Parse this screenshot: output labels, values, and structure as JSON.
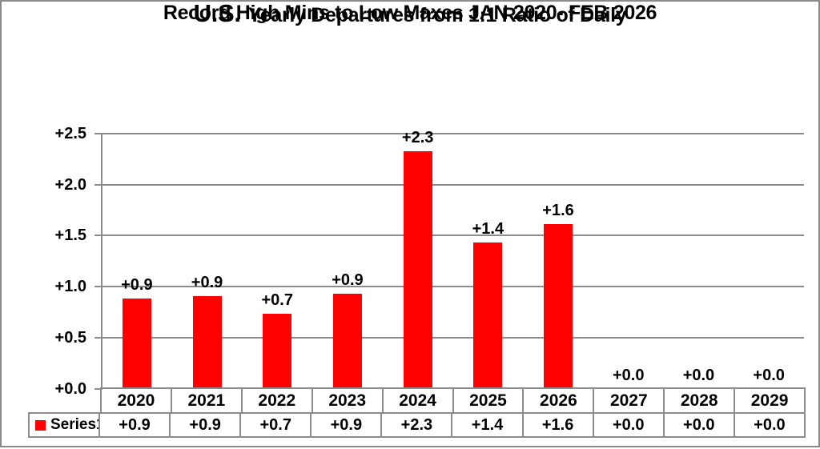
{
  "title": {
    "line1_emphasis": "U.S.",
    "line1_rest": "Yearly Departures from 1:1 Ratio of Daily",
    "line2": "Record High Mins to Low Maxes JAN 2020- FEB 2026"
  },
  "chart_data": {
    "type": "bar",
    "title": "U.S. Yearly Departures from 1:1 Ratio of Daily Record High Mins to Low Maxes JAN 2020- FEB 2026",
    "categories": [
      "2020",
      "2021",
      "2022",
      "2023",
      "2024",
      "2025",
      "2026",
      "2027",
      "2028",
      "2029"
    ],
    "series": [
      {
        "name": "Series1",
        "values": [
          0.88,
          0.91,
          0.73,
          0.93,
          2.33,
          1.43,
          1.61,
          0.0,
          0.0,
          0.0
        ],
        "point_labels": [
          "+0.9",
          "+0.9",
          "+0.7",
          "+0.9",
          "+2.3",
          "+1.4",
          "+1.6",
          "+0.0",
          "+0.0",
          "+0.0"
        ],
        "color": "#ff0000"
      }
    ],
    "y_axis": {
      "min": 0,
      "max": 2.5,
      "ticks": [
        {
          "value": 2.5,
          "label": "+2.5"
        },
        {
          "value": 2.0,
          "label": "+2.0"
        },
        {
          "value": 1.5,
          "label": "+1.5"
        },
        {
          "value": 1.0,
          "label": "+1.0"
        },
        {
          "value": 0.5,
          "label": "+0.5"
        },
        {
          "value": 0.0,
          "label": "+0.0"
        }
      ]
    },
    "grid": true,
    "legend_position": "bottom-left-table",
    "data_table_shown": true
  },
  "colors": {
    "bar": "#ff0000",
    "grid": "#8c8c8c",
    "frame": "#8a8a8a",
    "text": "#000000",
    "background": "#ffffff"
  }
}
